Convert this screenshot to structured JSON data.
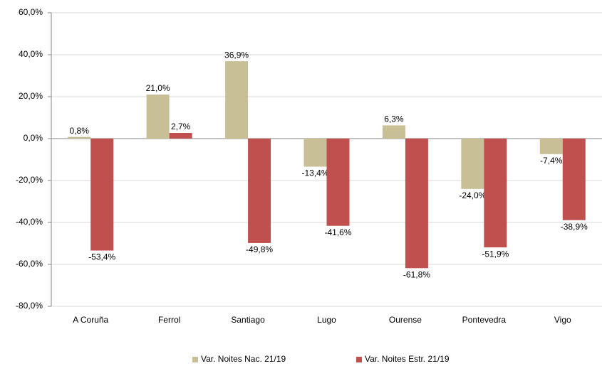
{
  "chart_data": {
    "type": "bar",
    "categories": [
      "A Coruña",
      "Ferrol",
      "Santiago",
      "Lugo",
      "Ourense",
      "Pontevedra",
      "Vigo"
    ],
    "series": [
      {
        "name": "Var. Noites Nac. 21/19",
        "color": "#c8bf96",
        "values": [
          0.8,
          21.0,
          36.9,
          -13.4,
          6.3,
          -24.0,
          -7.4
        ],
        "value_labels": [
          "0,8%",
          "21,0%",
          "36,9%",
          "-13,4%",
          "6,3%",
          "-24,0%",
          "-7,4%"
        ]
      },
      {
        "name": "Var. Noites Estr. 21/19",
        "color": "#c0504d",
        "values": [
          -53.4,
          2.7,
          -49.8,
          -41.6,
          -61.8,
          -51.9,
          -38.9
        ],
        "value_labels": [
          "-53,4%",
          "2,7%",
          "-49,8%",
          "-41,6%",
          "-61,8%",
          "-51,9%",
          "-38,9%"
        ]
      }
    ],
    "ylim": [
      -80,
      60
    ],
    "yticks": [
      {
        "value": -80,
        "label": "-80,0%"
      },
      {
        "value": -60,
        "label": "-60,0%"
      },
      {
        "value": -40,
        "label": "-40,0%"
      },
      {
        "value": -20,
        "label": "-20,0%"
      },
      {
        "value": 0,
        "label": "0,0%"
      },
      {
        "value": 20,
        "label": "20,0%"
      },
      {
        "value": 40,
        "label": "40,0%"
      },
      {
        "value": 60,
        "label": "60,0%"
      }
    ],
    "grid": true,
    "legend": "bottom"
  }
}
